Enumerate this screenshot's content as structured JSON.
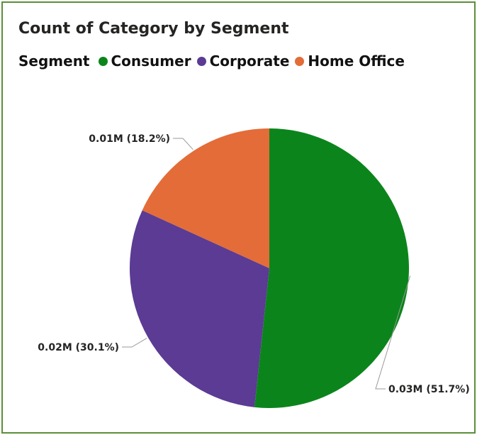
{
  "chart_data": {
    "type": "pie",
    "title": "Count of Category by Segment",
    "legend_title": "Segment",
    "legend_position": "top-left",
    "series": [
      {
        "name": "Consumer",
        "value_label": "0.03M",
        "percent": 51.7,
        "percent_label": "(51.7%)",
        "color": "#0b851b"
      },
      {
        "name": "Corporate",
        "value_label": "0.02M",
        "percent": 30.1,
        "percent_label": "(30.1%)",
        "color": "#5b3b94"
      },
      {
        "name": "Home Office",
        "value_label": "0.01M",
        "percent": 18.2,
        "percent_label": "(18.2%)",
        "color": "#e36c38"
      }
    ]
  },
  "border_color": "#5a8f3a"
}
